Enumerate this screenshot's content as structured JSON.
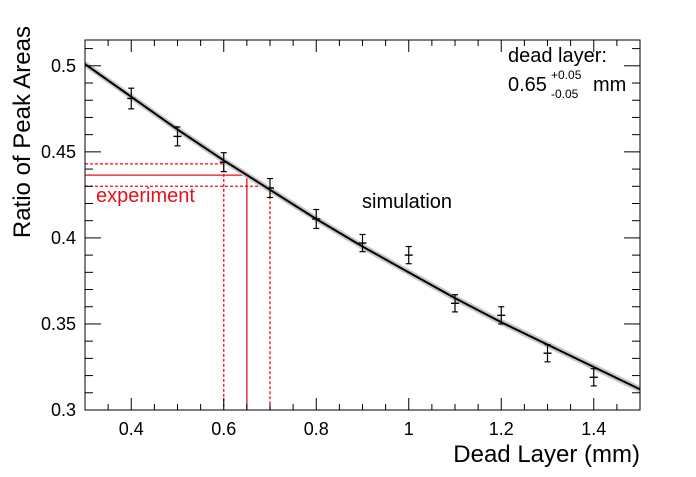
{
  "chart_data": {
    "type": "scatter",
    "xlabel": "Dead Layer (mm)",
    "ylabel": "Ratio of Peak Areas",
    "xlim": [
      0.3,
      1.5
    ],
    "ylim": [
      0.3,
      0.515
    ],
    "x_ticks": [
      {
        "value": 0.4,
        "label": "0.4"
      },
      {
        "value": 0.6,
        "label": "0.6"
      },
      {
        "value": 0.8,
        "label": "0.8"
      },
      {
        "value": 1.0,
        "label": "1"
      },
      {
        "value": 1.2,
        "label": "1.2"
      },
      {
        "value": 1.4,
        "label": "1.4"
      }
    ],
    "y_ticks": [
      {
        "value": 0.3,
        "label": "0.3"
      },
      {
        "value": 0.35,
        "label": "0.35"
      },
      {
        "value": 0.4,
        "label": "0.4"
      },
      {
        "value": 0.45,
        "label": "0.45"
      },
      {
        "value": 0.5,
        "label": "0.5"
      }
    ],
    "x_minor_step": 0.05,
    "y_minor_step": 0.01,
    "grid": false,
    "points": [
      {
        "x": 0.4,
        "y": 0.481,
        "yerr": 0.006
      },
      {
        "x": 0.5,
        "y": 0.459,
        "yerr": 0.0055
      },
      {
        "x": 0.6,
        "y": 0.444,
        "yerr": 0.0055
      },
      {
        "x": 0.7,
        "y": 0.429,
        "yerr": 0.0055
      },
      {
        "x": 0.8,
        "y": 0.411,
        "yerr": 0.0055
      },
      {
        "x": 0.9,
        "y": 0.397,
        "yerr": 0.005
      },
      {
        "x": 1.0,
        "y": 0.39,
        "yerr": 0.005
      },
      {
        "x": 1.1,
        "y": 0.362,
        "yerr": 0.005
      },
      {
        "x": 1.2,
        "y": 0.355,
        "yerr": 0.005
      },
      {
        "x": 1.3,
        "y": 0.333,
        "yerr": 0.005
      },
      {
        "x": 1.4,
        "y": 0.319,
        "yerr": 0.005
      }
    ],
    "fit_curve": {
      "x": [
        0.3,
        0.4,
        0.5,
        0.6,
        0.7,
        0.8,
        0.9,
        1.0,
        1.1,
        1.2,
        1.3,
        1.4,
        1.5
      ],
      "y": [
        0.501,
        0.482,
        0.463,
        0.445,
        0.428,
        0.411,
        0.395,
        0.38,
        0.365,
        0.351,
        0.338,
        0.325,
        0.312
      ],
      "band_halfwidth": 0.002,
      "color": "#000000",
      "band_color": "#c8c8c8"
    },
    "experiment": {
      "ratio": 0.4365,
      "ratio_low": 0.43,
      "ratio_high": 0.443,
      "dead_layer": 0.65,
      "dead_layer_low": 0.6,
      "dead_layer_high": 0.7,
      "color": "#e8101a"
    },
    "annotations": {
      "experiment_label": "experiment",
      "simulation_label": "simulation",
      "result_title": "dead layer:",
      "result_value": "0.65",
      "result_plus": "+0.05",
      "result_minus": "-0.05",
      "result_unit": "mm"
    }
  }
}
